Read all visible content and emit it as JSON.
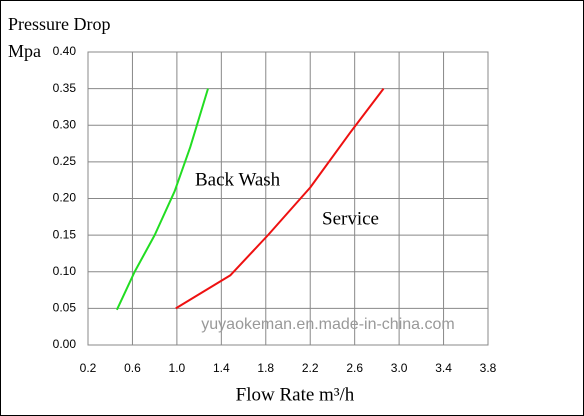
{
  "chart_data": {
    "type": "line",
    "title": "Pressure Drop",
    "y_label": "Mpa",
    "x_label": "Flow Rate m³/h",
    "annotations": [
      "Back Wash",
      "Service"
    ],
    "watermark": "yuyaokeman.en.made-in-china.com",
    "xlim": [
      0.2,
      3.8
    ],
    "ylim": [
      0,
      0.4
    ],
    "xticks": [
      0.2,
      0.6,
      {
        "value": 1,
        "label": "1.0"
      },
      1.4,
      1.8,
      2.2,
      2.6,
      {
        "value": 3,
        "label": "3.0"
      },
      3.4,
      3.8
    ],
    "yticks": [
      {
        "value": 0,
        "label": "0.00"
      },
      0.05,
      {
        "value": 0.1,
        "label": "0.10"
      },
      0.15,
      {
        "value": 0.2,
        "label": "0.20"
      },
      0.25,
      {
        "value": 0.3,
        "label": "0.30"
      },
      0.35,
      {
        "value": 0.4,
        "label": "0.40"
      }
    ],
    "grid": true,
    "series": [
      {
        "name": "Back Wash",
        "color": "#22dd22",
        "x": [
          0.46,
          0.62,
          0.8,
          0.98,
          1.12,
          1.28
        ],
        "values": [
          0.048,
          0.1,
          0.15,
          0.21,
          0.27,
          0.35
        ]
      },
      {
        "name": "Service",
        "color": "#ee1111",
        "x": [
          0.99,
          1.48,
          1.82,
          2.2,
          2.56,
          2.86
        ],
        "values": [
          0.05,
          0.095,
          0.15,
          0.215,
          0.29,
          0.35
        ]
      }
    ]
  }
}
